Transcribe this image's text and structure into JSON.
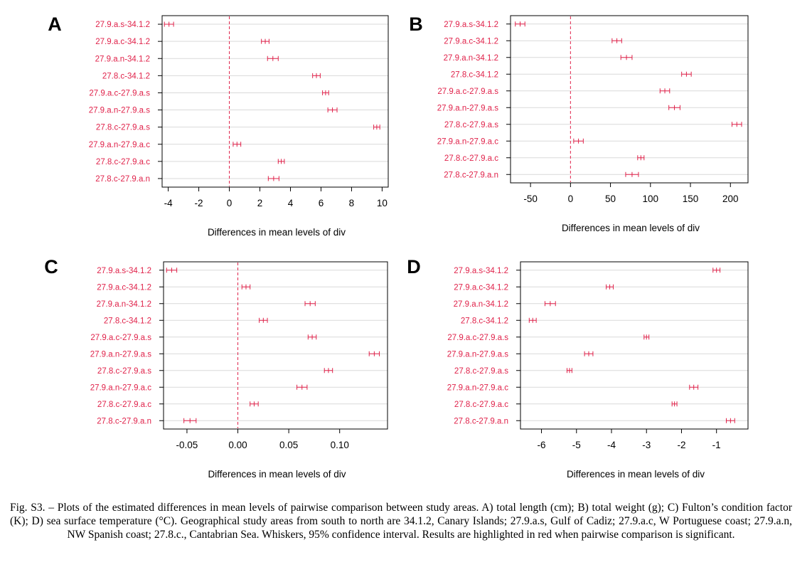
{
  "caption": "Fig. S3. – Plots of the estimated differences in mean levels of pairwise comparison between study areas. A) total length (cm); B) total weight (g); C) Fulton’s condition factor (K); D) sea surface temperature (°C). Geographical study areas from south to north are 34.1.2, Canary Islands; 27.9.a.s, Gulf of Cadiz; 27.9.a.c, W Portuguese coast; 27.9.a.n, NW Spanish coast; 27.8.c., Cantabrian Sea. Whiskers, 95% confidence interval. Results are highlighted in red when pairwise comparison is significant.",
  "colors": {
    "significant": "#e0224a",
    "axis": "#000000",
    "grid": "#d9d9d9"
  },
  "chart_data": [
    {
      "panel": "A",
      "type": "interval",
      "xlabel": "Differences in mean levels of div",
      "xlim": [
        -4.4,
        10.4
      ],
      "xticks": [
        -4,
        -2,
        0,
        2,
        4,
        6,
        8,
        10
      ],
      "xtick_labels": [
        "-4",
        "-2",
        "0",
        "2",
        "4",
        "6",
        "8",
        "10"
      ],
      "categories": [
        "27.9.a.s-34.1.2",
        "27.9.a.c-34.1.2",
        "27.9.a.n-34.1.2",
        "27.8.c-34.1.2",
        "27.9.a.c-27.9.a.s",
        "27.9.a.n-27.9.a.s",
        "27.8.c-27.9.a.s",
        "27.9.a.n-27.9.a.c",
        "27.8.c-27.9.a.c",
        "27.8.c-27.9.a.n"
      ],
      "estimate": [
        -3.95,
        2.35,
        2.85,
        5.7,
        6.3,
        6.75,
        9.65,
        0.5,
        3.4,
        2.9
      ],
      "lower": [
        -4.25,
        2.1,
        2.5,
        5.45,
        6.1,
        6.45,
        9.45,
        0.25,
        3.2,
        2.55
      ],
      "upper": [
        -3.65,
        2.6,
        3.2,
        5.95,
        6.5,
        7.05,
        9.85,
        0.75,
        3.6,
        3.25
      ],
      "reference_line": 0
    },
    {
      "panel": "B",
      "type": "interval",
      "xlabel": "Differences in mean levels of div",
      "xlim": [
        -75,
        222
      ],
      "xticks": [
        -50,
        0,
        50,
        100,
        150,
        200
      ],
      "xtick_labels": [
        "-50",
        "0",
        "50",
        "100",
        "150",
        "200"
      ],
      "categories": [
        "27.9.a.s-34.1.2",
        "27.9.a.c-34.1.2",
        "27.9.a.n-34.1.2",
        "27.8.c-34.1.2",
        "27.9.a.c-27.9.a.s",
        "27.9.a.n-27.9.a.s",
        "27.8.c-27.9.a.s",
        "27.9.a.n-27.9.a.c",
        "27.8.c-27.9.a.c",
        "27.8.c-27.9.a.n"
      ],
      "estimate": [
        -63,
        58,
        70,
        145,
        118,
        130,
        208,
        10,
        88,
        77
      ],
      "lower": [
        -69,
        52,
        63,
        139,
        112,
        123,
        202,
        4,
        84,
        69
      ],
      "upper": [
        -57,
        64,
        77,
        151,
        124,
        137,
        214,
        16,
        92,
        85
      ],
      "reference_line": 0
    },
    {
      "panel": "C",
      "type": "interval",
      "xlabel": "Differences in mean levels of div",
      "xlim": [
        -0.073,
        0.147
      ],
      "xticks": [
        -0.05,
        0.0,
        0.05,
        0.1
      ],
      "xtick_labels": [
        "-0.05",
        "0.00",
        "0.05",
        "0.10"
      ],
      "categories": [
        "27.9.a.s-34.1.2",
        "27.9.a.c-34.1.2",
        "27.9.a.n-34.1.2",
        "27.8.c-34.1.2",
        "27.9.a.c-27.9.a.s",
        "27.9.a.n-27.9.a.s",
        "27.8.c-27.9.a.s",
        "27.9.a.n-27.9.a.c",
        "27.8.c-27.9.a.c",
        "27.8.c-27.9.a.n"
      ],
      "estimate": [
        -0.065,
        0.008,
        0.071,
        0.025,
        0.073,
        0.134,
        0.089,
        0.063,
        0.016,
        -0.047
      ],
      "lower": [
        -0.07,
        0.004,
        0.066,
        0.021,
        0.069,
        0.129,
        0.085,
        0.058,
        0.012,
        -0.053
      ],
      "upper": [
        -0.06,
        0.012,
        0.076,
        0.029,
        0.077,
        0.139,
        0.093,
        0.068,
        0.02,
        -0.041
      ],
      "reference_line": 0
    },
    {
      "panel": "D",
      "type": "interval",
      "xlabel": "Differences in mean levels of div",
      "xlim": [
        -6.6,
        -0.1
      ],
      "xticks": [
        -6,
        -5,
        -4,
        -3,
        -2,
        -1
      ],
      "xtick_labels": [
        "-6",
        "-5",
        "-4",
        "-3",
        "-2",
        "-1"
      ],
      "categories": [
        "27.9.a.s-34.1.2",
        "27.9.a.c-34.1.2",
        "27.9.a.n-34.1.2",
        "27.8.c-34.1.2",
        "27.9.a.c-27.9.a.s",
        "27.9.a.n-27.9.a.s",
        "27.8.c-27.9.a.s",
        "27.9.a.n-27.9.a.c",
        "27.8.c-27.9.a.c",
        "27.8.c-27.9.a.n"
      ],
      "estimate": [
        -1.0,
        -4.05,
        -5.75,
        -6.25,
        -3.0,
        -4.65,
        -5.2,
        -1.65,
        -2.2,
        -0.6
      ],
      "lower": [
        -1.1,
        -4.15,
        -5.9,
        -6.35,
        -3.07,
        -4.77,
        -5.27,
        -1.77,
        -2.27,
        -0.72
      ],
      "upper": [
        -0.9,
        -3.95,
        -5.6,
        -6.15,
        -2.93,
        -4.53,
        -5.13,
        -1.53,
        -2.13,
        -0.48
      ],
      "reference_line": 0
    }
  ]
}
